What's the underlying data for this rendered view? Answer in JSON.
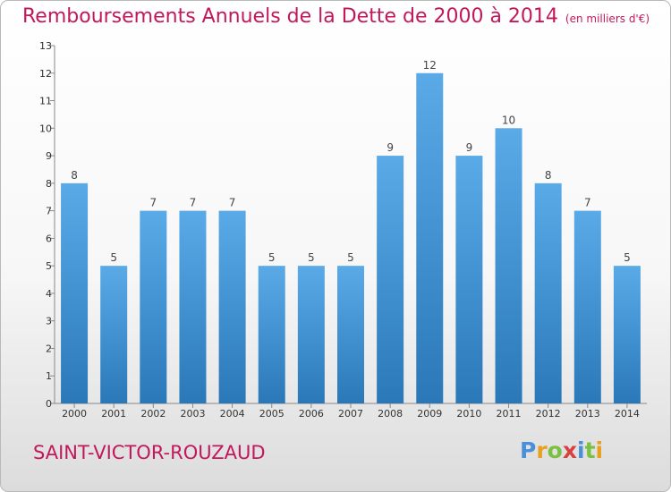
{
  "header": {
    "title": "Remboursements Annuels de la Dette de 2000 à 2014",
    "unit": "(en milliers d'€)"
  },
  "footer": {
    "town": "SAINT-VICTOR-ROUZAUD",
    "logo_text": "Proxiti"
  },
  "colors": {
    "title": "#c2185b",
    "bar_top": "#5aaae8",
    "bar_bottom": "#2a78b8",
    "logo_letters": [
      "#4a8fd8",
      "#e8a020",
      "#7cc043",
      "#d94040",
      "#4a8fd8",
      "#7cc043",
      "#e8a020"
    ]
  },
  "chart_data": {
    "type": "bar",
    "title": "Remboursements Annuels de la Dette de 2000 à 2014",
    "categories": [
      "2000",
      "2001",
      "2002",
      "2003",
      "2004",
      "2005",
      "2006",
      "2007",
      "2008",
      "2009",
      "2010",
      "2011",
      "2012",
      "2013",
      "2014"
    ],
    "values": [
      8,
      5,
      7,
      7,
      7,
      5,
      5,
      5,
      9,
      12,
      9,
      10,
      8,
      7,
      5
    ],
    "ylim": [
      0,
      13
    ],
    "yticks": [
      0,
      1,
      2,
      3,
      4,
      5,
      6,
      7,
      8,
      9,
      10,
      11,
      12,
      13
    ],
    "grid": false,
    "data_labels": true
  }
}
